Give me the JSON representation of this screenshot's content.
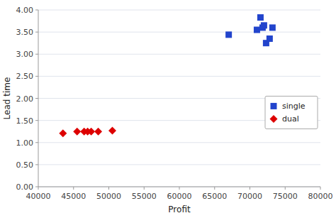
{
  "chart_data": {
    "type": "scatter",
    "xlabel": "Profit",
    "ylabel": "Lead time",
    "series": [
      {
        "name": "single",
        "color": "#2244CC",
        "marker": "square",
        "x": [
          67000,
          71000,
          71500,
          71800,
          72000,
          72300,
          72800,
          73200
        ],
        "values": [
          3.44,
          3.55,
          3.83,
          3.6,
          3.65,
          3.25,
          3.35,
          3.6
        ]
      },
      {
        "name": "dual",
        "color": "#DD0000",
        "marker": "diamond",
        "x": [
          43500,
          45500,
          46500,
          47000,
          47500,
          48500,
          50500
        ],
        "values": [
          1.21,
          1.25,
          1.25,
          1.25,
          1.25,
          1.25,
          1.27
        ]
      }
    ],
    "xlim": [
      40000,
      80000
    ],
    "ylim": [
      0.0,
      4.0
    ],
    "xticks": [
      40000,
      45000,
      50000,
      55000,
      60000,
      65000,
      70000,
      75000,
      80000
    ],
    "yticks": [
      {
        "value": 0.0,
        "label": "0.00"
      },
      {
        "value": 0.5,
        "label": "0.50"
      },
      {
        "value": 1.0,
        "label": "1.00"
      },
      {
        "value": 1.5,
        "label": "1.50"
      },
      {
        "value": 2.0,
        "label": "2.00"
      },
      {
        "value": 2.5,
        "label": "2.50"
      },
      {
        "value": 3.0,
        "label": "3.00"
      },
      {
        "value": 3.5,
        "label": "3.50"
      },
      {
        "value": 4.0,
        "label": "4.00"
      }
    ],
    "grid": true,
    "legend": "right"
  }
}
